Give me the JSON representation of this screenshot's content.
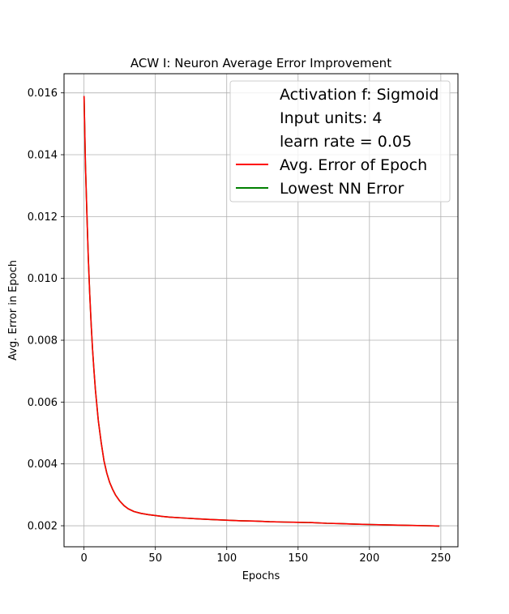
{
  "chart_data": {
    "type": "line",
    "title": "ACW I: Neuron Average Error Improvement",
    "xlabel": "Epochs",
    "ylabel": "Avg. Error in Epoch",
    "xlim": [
      -14,
      262
    ],
    "ylim": [
      0.00132,
      0.01662
    ],
    "x_ticks": [
      0,
      50,
      100,
      150,
      200,
      250
    ],
    "y_ticks": [
      0.002,
      0.004,
      0.006,
      0.008,
      0.01,
      0.012,
      0.014,
      0.016
    ],
    "x_tick_labels": [
      "0",
      "50",
      "100",
      "150",
      "200",
      "250"
    ],
    "y_tick_labels": [
      "0.002",
      "0.004",
      "0.006",
      "0.008",
      "0.010",
      "0.012",
      "0.014",
      "0.016"
    ],
    "grid": true,
    "legend_position": "top-right",
    "legend_text": [
      "Activation f: Sigmoid",
      "Input units: 4",
      "learn rate = 0.05"
    ],
    "series": [
      {
        "name": "Avg. Error of Epoch",
        "color": "#ff0000",
        "x": [
          0,
          1,
          2,
          3,
          4,
          5,
          6,
          7,
          8,
          10,
          12,
          14,
          16,
          18,
          20,
          22,
          25,
          28,
          31,
          35,
          40,
          45,
          50,
          55,
          60,
          70,
          80,
          90,
          100,
          110,
          120,
          130,
          140,
          150,
          160,
          170,
          180,
          190,
          200,
          210,
          220,
          230,
          240,
          249
        ],
        "values": [
          0.0159,
          0.0137,
          0.0121,
          0.0107,
          0.0095,
          0.0085,
          0.0077,
          0.007,
          0.0064,
          0.0054,
          0.0047,
          0.0041,
          0.0037,
          0.0034,
          0.00318,
          0.003,
          0.0028,
          0.00265,
          0.00255,
          0.00246,
          0.0024,
          0.00236,
          0.00233,
          0.0023,
          0.00228,
          0.00225,
          0.00222,
          0.0022,
          0.00218,
          0.00216,
          0.00215,
          0.00213,
          0.00212,
          0.00211,
          0.0021,
          0.00208,
          0.00207,
          0.00205,
          0.00204,
          0.00203,
          0.00202,
          0.00201,
          0.002,
          0.00199
        ]
      },
      {
        "name": "Lowest NN Error",
        "color": "#008000",
        "x": [
          0,
          1,
          2,
          3,
          4,
          5,
          6,
          7,
          8,
          10,
          12,
          14,
          16,
          18,
          20,
          22,
          25,
          28,
          31,
          35,
          40,
          45,
          50,
          55,
          60,
          70,
          80,
          90,
          100,
          110,
          120,
          130,
          140,
          150,
          160,
          170,
          180,
          190,
          200,
          210,
          220,
          230,
          240,
          249
        ],
        "values": [
          0.0159,
          0.0137,
          0.0121,
          0.0107,
          0.0095,
          0.0085,
          0.0077,
          0.007,
          0.0064,
          0.0054,
          0.0047,
          0.0041,
          0.0037,
          0.0034,
          0.00318,
          0.003,
          0.0028,
          0.00265,
          0.00255,
          0.00246,
          0.0024,
          0.00236,
          0.00233,
          0.0023,
          0.00228,
          0.00225,
          0.00222,
          0.0022,
          0.00218,
          0.00216,
          0.00215,
          0.00213,
          0.00212,
          0.00211,
          0.0021,
          0.00208,
          0.00207,
          0.00205,
          0.00204,
          0.00203,
          0.00202,
          0.00201,
          0.002,
          0.00199
        ]
      }
    ]
  }
}
